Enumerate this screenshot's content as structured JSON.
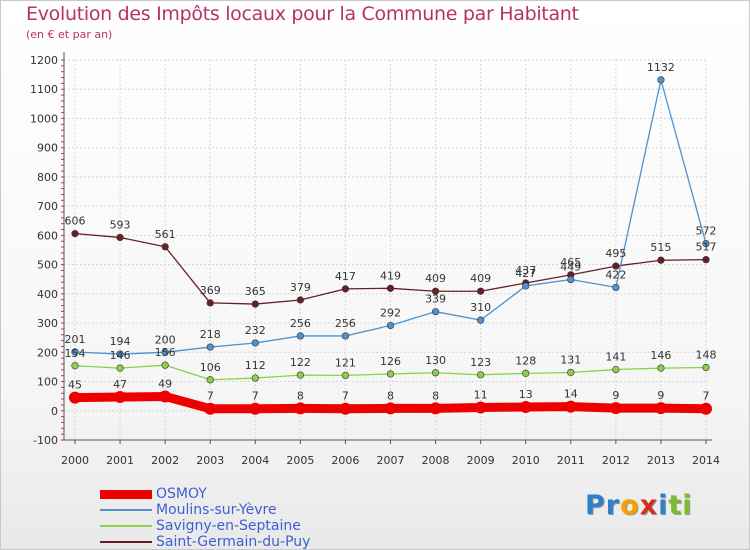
{
  "chart_data": {
    "type": "line",
    "title": "Evolution des Impôts locaux pour la Commune par Habitant",
    "subtitle": "(en € et par an)",
    "xlabel": "",
    "ylabel": "",
    "x": [
      2000,
      2001,
      2002,
      2003,
      2004,
      2005,
      2006,
      2007,
      2008,
      2009,
      2010,
      2011,
      2012,
      2013,
      2014
    ],
    "ylim": [
      -100,
      1200
    ],
    "yticks": [
      -100,
      0,
      100,
      200,
      300,
      400,
      500,
      600,
      700,
      800,
      900,
      1000,
      1100,
      1200
    ],
    "grid": true,
    "legend_position": "bottom-left",
    "series": [
      {
        "name": "OSMOY",
        "color": "#ee0000",
        "values": [
          45,
          47,
          49,
          7,
          7,
          8,
          7,
          8,
          8,
          11,
          13,
          14,
          9,
          9,
          7
        ]
      },
      {
        "name": "Moulins-sur-Yèvre",
        "color": "#4e92cf",
        "values": [
          201,
          194,
          200,
          218,
          232,
          256,
          256,
          292,
          339,
          310,
          427,
          449,
          422,
          1132,
          572
        ]
      },
      {
        "name": "Savigny-en-Septaine",
        "color": "#8ad14a",
        "values": [
          154,
          146,
          156,
          106,
          112,
          122,
          121,
          126,
          130,
          123,
          128,
          131,
          141,
          146,
          148
        ]
      },
      {
        "name": "Saint-Germain-du-Puy",
        "color": "#6b1e26",
        "values": [
          606,
          593,
          561,
          369,
          365,
          379,
          417,
          419,
          409,
          409,
          437,
          465,
          495,
          515,
          517
        ]
      }
    ]
  },
  "brand": {
    "letters": [
      "P",
      "r",
      "o",
      "x",
      "i",
      "t",
      "i"
    ],
    "colors": [
      "#2f7fc9",
      "#2f7fc9",
      "#f2a100",
      "#d62b1e",
      "#2f7fc9",
      "#7bbd2a",
      "#7bbd2a"
    ]
  }
}
